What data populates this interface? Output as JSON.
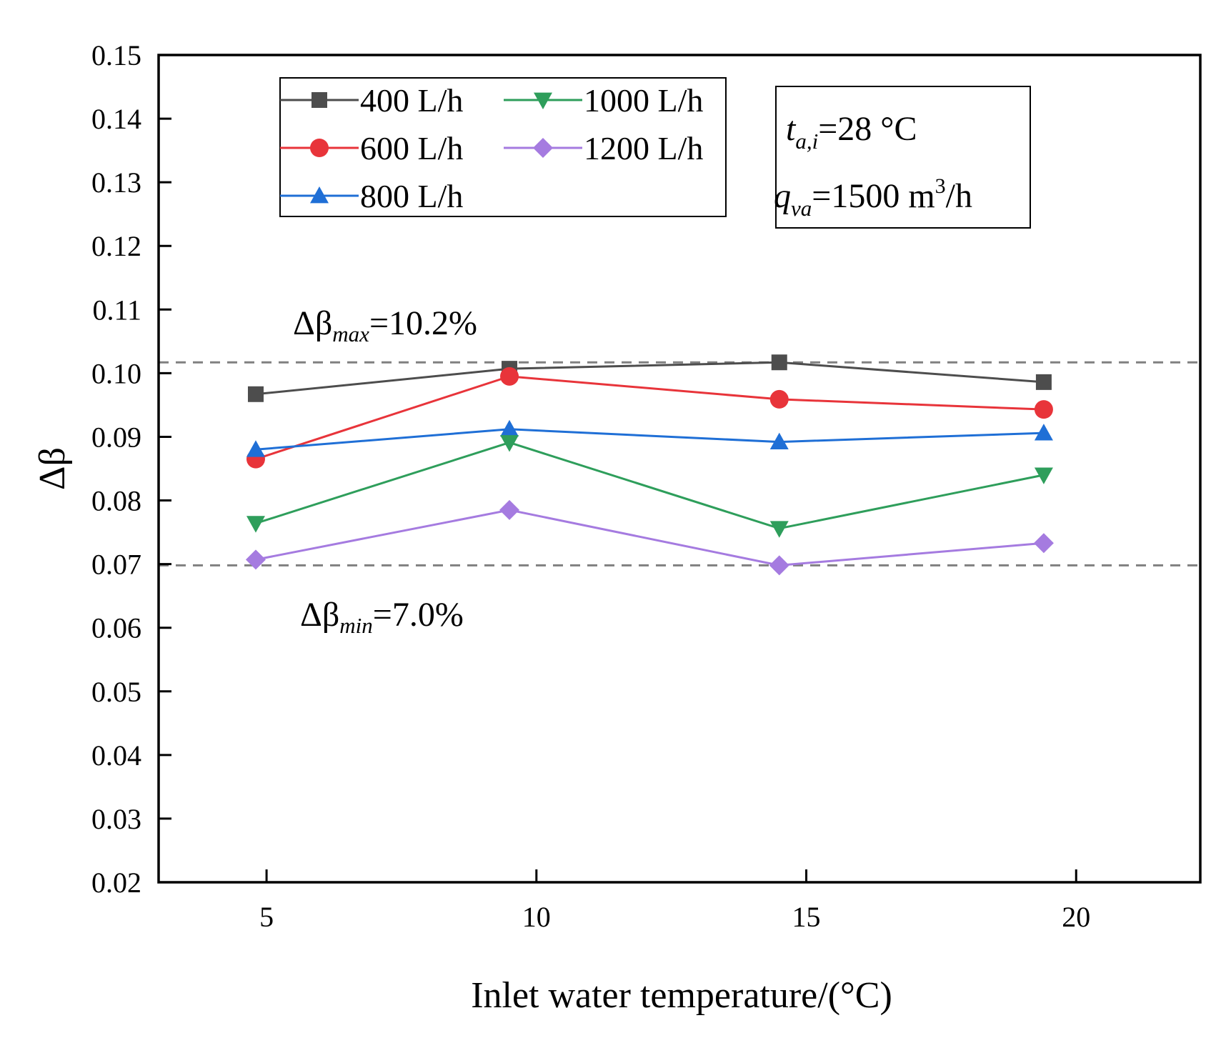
{
  "chart_data": {
    "type": "line",
    "xlabel": "Inlet water temperature/(°C)",
    "ylabel": "Δβ",
    "xlim": [
      3,
      22.3
    ],
    "ylim": [
      0.02,
      0.15
    ],
    "xticks": [
      5,
      10,
      15,
      20
    ],
    "xtick_labels": [
      "5",
      "10",
      "15",
      "20"
    ],
    "yticks": [
      0.02,
      0.03,
      0.04,
      0.05,
      0.06,
      0.07,
      0.08,
      0.09,
      0.1,
      0.11,
      0.12,
      0.13,
      0.14,
      0.15
    ],
    "ytick_labels": [
      "0.02",
      "0.03",
      "0.04",
      "0.05",
      "0.06",
      "0.07",
      "0.08",
      "0.09",
      "0.10",
      "0.11",
      "0.12",
      "0.13",
      "0.14",
      "0.15"
    ],
    "x": [
      4.8,
      9.5,
      14.5,
      19.4
    ],
    "series": [
      {
        "name": "400 L/h",
        "marker": "square",
        "color": "#4d4d4d",
        "values": [
          0.0967,
          0.1007,
          0.1017,
          0.0986
        ]
      },
      {
        "name": "600 L/h",
        "marker": "circle",
        "color": "#e8343a",
        "values": [
          0.0865,
          0.0995,
          0.0959,
          0.0943
        ]
      },
      {
        "name": "800 L/h",
        "marker": "triangle-up",
        "color": "#1f6fd6",
        "values": [
          0.088,
          0.0912,
          0.0892,
          0.0906
        ]
      },
      {
        "name": "1000 L/h",
        "marker": "triangle-down",
        "color": "#2e9e5b",
        "values": [
          0.0764,
          0.0891,
          0.0756,
          0.084
        ]
      },
      {
        "name": "1200 L/h",
        "marker": "diamond",
        "color": "#a57be0",
        "values": [
          0.0707,
          0.0785,
          0.0698,
          0.0733
        ]
      }
    ],
    "reference_lines": [
      {
        "value": 0.1017,
        "style": "dashed",
        "color": "#808080"
      },
      {
        "value": 0.0698,
        "style": "dashed",
        "color": "#808080"
      }
    ],
    "annotations": {
      "max": {
        "symbol": "Δβ",
        "sub": "max",
        "value": "=10.2%"
      },
      "min": {
        "symbol": "Δβ",
        "sub": "min",
        "value": "=7.0%"
      }
    },
    "conditions": {
      "t_symbol": "t",
      "t_sub": "a,i",
      "t_value": "=28 °C",
      "q_symbol": "q",
      "q_sub": "va",
      "q_value": "=1500 m",
      "q_sup": "3",
      "q_unit": "/h"
    },
    "legend_position": "top-left inside"
  }
}
